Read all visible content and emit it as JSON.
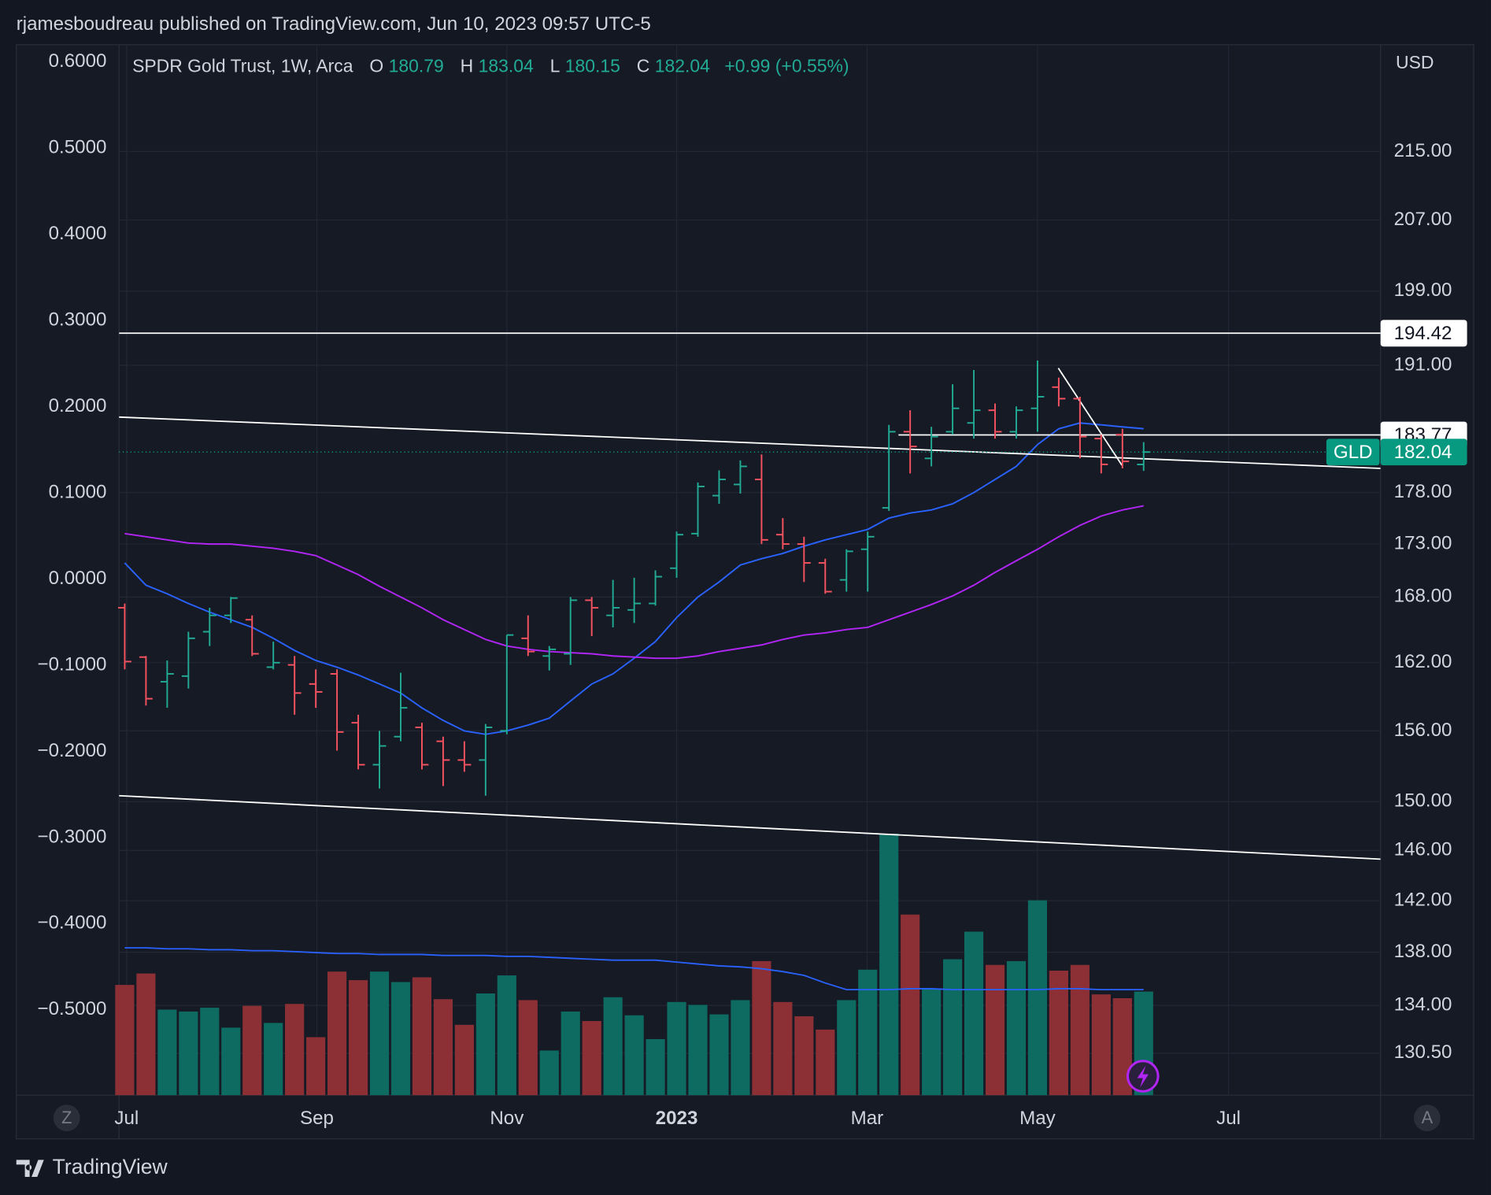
{
  "header": "rjamesboudreau published on TradingView.com, Jun 10, 2023 09:57 UTC-5",
  "footer": "TradingView",
  "buttons": [
    "Z",
    "A"
  ],
  "chart_data": {
    "type": "ohlc",
    "title": "SPDR Gold Trust, 1W, Arca",
    "legend_labels": [
      "O",
      "H",
      "L",
      "C"
    ],
    "change": "+0.99 (+0.55%)",
    "currency": "USD",
    "last_price_symbol": "GLD",
    "log_scale": true,
    "grid": true,
    "up_color": "#22ab94",
    "down_color": "#f7525f",
    "volume_up_color": "#0d6b62",
    "volume_down_color": "#8c3036",
    "last_price_color": "#089981",
    "ohlc": {
      "open": [
        167.0,
        162.5,
        160.3,
        160.8,
        164.8,
        166.3,
        165.9,
        161.6,
        161.8,
        160.1,
        161.0,
        156.7,
        153.1,
        155.5,
        156.3,
        155.1,
        153.5,
        153.5,
        156.0,
        164.2,
        162.6,
        162.8,
        167.7,
        166.3,
        166.8,
        167.4,
        170.7,
        174.0,
        177.7,
        178.8,
        179.3,
        173.9,
        173.0,
        171.2,
        169.6,
        172.5,
        176.5,
        184.1,
        181.4,
        184.1,
        185.0,
        186.3,
        184.1,
        186.5,
        188.7,
        187.5,
        183.4,
        183.8,
        180.79
      ],
      "high": [
        167.4,
        162.6,
        162.2,
        164.8,
        167.0,
        168.0,
        166.3,
        163.9,
        162.6,
        161.4,
        161.4,
        157.4,
        156.0,
        161.1,
        156.7,
        155.5,
        155.1,
        156.6,
        164.5,
        166.3,
        163.5,
        168.0,
        168.0,
        169.6,
        169.8,
        170.5,
        174.2,
        179.0,
        180.2,
        181.2,
        181.8,
        175.5,
        173.7,
        171.6,
        172.5,
        174.2,
        184.8,
        186.3,
        184.6,
        189.0,
        190.5,
        187.0,
        186.7,
        191.5,
        189.7,
        187.7,
        183.8,
        184.4,
        183.04
      ],
      "low": [
        161.4,
        158.2,
        158.0,
        159.7,
        163.5,
        165.6,
        162.6,
        161.4,
        157.4,
        158.0,
        154.3,
        152.7,
        151.1,
        155.1,
        152.7,
        151.3,
        152.5,
        150.5,
        155.7,
        162.6,
        161.3,
        161.8,
        164.4,
        165.2,
        165.6,
        167.2,
        169.8,
        173.7,
        176.9,
        177.9,
        173.0,
        172.5,
        169.4,
        168.3,
        168.5,
        168.5,
        176.2,
        179.9,
        180.6,
        183.8,
        183.4,
        183.4,
        183.4,
        184.1,
        186.7,
        181.4,
        179.9,
        180.4,
        180.15
      ],
      "close": [
        162.1,
        158.8,
        161.0,
        164.2,
        166.3,
        167.9,
        162.8,
        162.0,
        159.3,
        159.4,
        155.9,
        153.1,
        154.7,
        158.0,
        153.1,
        153.5,
        153.1,
        156.3,
        164.5,
        163.0,
        163.2,
        167.7,
        167.0,
        167.0,
        167.4,
        169.9,
        173.9,
        178.6,
        179.3,
        180.6,
        173.4,
        173.0,
        171.2,
        168.5,
        172.3,
        173.7,
        184.1,
        182.6,
        183.6,
        186.5,
        186.3,
        184.1,
        186.3,
        187.7,
        187.5,
        183.6,
        180.8,
        181.1,
        182.04
      ]
    },
    "moving_averages": [
      {
        "color": "#2962ff",
        "values": [
          171.2,
          169.1,
          168.3,
          167.4,
          166.6,
          165.9,
          165.2,
          164.2,
          163.1,
          162.2,
          161.6,
          160.9,
          160.1,
          159.3,
          158.0,
          156.9,
          156.0,
          155.7,
          156.0,
          156.5,
          157.1,
          158.6,
          160.1,
          161.0,
          162.4,
          163.9,
          166.1,
          168.0,
          169.4,
          171.0,
          171.6,
          172.1,
          172.8,
          173.4,
          173.9,
          174.4,
          175.5,
          176.0,
          176.3,
          176.9,
          178.0,
          179.3,
          180.6,
          182.8,
          184.4,
          185.0,
          184.8,
          184.6,
          184.4
        ]
      },
      {
        "color": "#b125f5",
        "values": [
          174.0,
          173.7,
          173.4,
          173.1,
          173.0,
          173.0,
          172.8,
          172.6,
          172.3,
          171.9,
          171.0,
          170.1,
          169.0,
          168.0,
          167.0,
          165.9,
          165.0,
          164.1,
          163.5,
          163.2,
          163.0,
          162.9,
          162.8,
          162.6,
          162.5,
          162.4,
          162.4,
          162.6,
          163.0,
          163.3,
          163.6,
          164.1,
          164.5,
          164.7,
          165.0,
          165.2,
          165.9,
          166.6,
          167.3,
          168.1,
          169.1,
          170.3,
          171.4,
          172.5,
          173.7,
          174.8,
          175.7,
          176.3,
          176.7
        ]
      }
    ],
    "volume": {
      "values": [
        116,
        128,
        90,
        88,
        92,
        71,
        94,
        76,
        96,
        61,
        130,
        121,
        130,
        119,
        124,
        101,
        74,
        107,
        126,
        100,
        47,
        88,
        78,
        103,
        84,
        59,
        98,
        95,
        85,
        100,
        141,
        98,
        83,
        69,
        100,
        132,
        275,
        190,
        112,
        143,
        172,
        137,
        141,
        205,
        131,
        137,
        106,
        102,
        109
      ],
      "ma": [
        155,
        155,
        154,
        154,
        153,
        153,
        152,
        152,
        151,
        150,
        149,
        149,
        148,
        148,
        148,
        147,
        147,
        147,
        146,
        146,
        145,
        144,
        143,
        142,
        142,
        142,
        140,
        138,
        136,
        135,
        133,
        130,
        126,
        118,
        111,
        111,
        111,
        112,
        112,
        111,
        111,
        111,
        111,
        111,
        112,
        112,
        111,
        111,
        111
      ],
      "ma_color": "#2962ff"
    },
    "horizontal_lines": [
      {
        "price": 194.42,
        "start": -0.27
      },
      {
        "price": 183.77,
        "start": 36.45
      }
    ],
    "trend_lines": [
      {
        "x": [
          -0.27,
          59.16
        ],
        "y": [
          185.6,
          180.4
        ]
      },
      {
        "x": [
          -0.27,
          59.16
        ],
        "y": [
          150.5,
          145.3
        ]
      },
      {
        "x": [
          43.98,
          46.98
        ],
        "y": [
          190.7,
          180.7
        ]
      }
    ],
    "xlim": [
      -0.27,
      59.16
    ],
    "xticks": [
      {
        "value": 0.09,
        "label": "Jul"
      },
      {
        "value": 9.05,
        "label": "Sep"
      },
      {
        "value": 18.0,
        "label": "Nov"
      },
      {
        "value": 26.0,
        "label": "2023"
      },
      {
        "value": 34.97,
        "label": "Mar"
      },
      {
        "value": 43.0,
        "label": "May"
      },
      {
        "value": 52.0,
        "label": "Jul"
      }
    ],
    "ylim": [
      127.5,
      228.1
    ],
    "yticks": [
      {
        "value": 215,
        "label": "215.00"
      },
      {
        "value": 207,
        "label": "207.00"
      },
      {
        "value": 199,
        "label": "199.00"
      },
      {
        "value": 191,
        "label": "191.00"
      },
      {
        "value": 178,
        "label": "178.00"
      },
      {
        "value": 173,
        "label": "173.00"
      },
      {
        "value": 168,
        "label": "168.00"
      },
      {
        "value": 162,
        "label": "162.00"
      },
      {
        "value": 156,
        "label": "156.00"
      },
      {
        "value": 150,
        "label": "150.00"
      },
      {
        "value": 146,
        "label": "146.00"
      },
      {
        "value": 142,
        "label": "142.00"
      },
      {
        "value": 138,
        "label": "138.00"
      },
      {
        "value": 134,
        "label": "134.00"
      },
      {
        "value": 130.5,
        "label": "130.50"
      }
    ],
    "y2lim": [
      -0.599,
      0.62
    ],
    "y2ticks": [
      {
        "value": 0.6,
        "label": "0.6000"
      },
      {
        "value": 0.5,
        "label": "0.5000"
      },
      {
        "value": 0.4,
        "label": "0.4000"
      },
      {
        "value": 0.3,
        "label": "0.3000"
      },
      {
        "value": 0.2,
        "label": "0.2000"
      },
      {
        "value": 0.1,
        "label": "0.1000"
      },
      {
        "value": 0,
        "label": "0.0000"
      },
      {
        "value": -0.1,
        "label": "−0.1000"
      },
      {
        "value": -0.2,
        "label": "−0.2000"
      },
      {
        "value": -0.3,
        "label": "−0.3000"
      },
      {
        "value": -0.4,
        "label": "−0.4000"
      },
      {
        "value": -0.5,
        "label": "−0.5000"
      }
    ]
  }
}
